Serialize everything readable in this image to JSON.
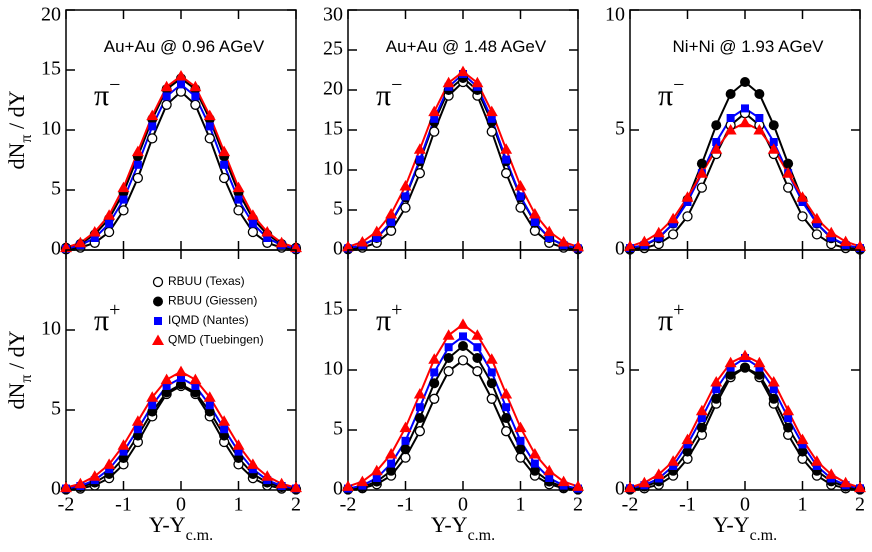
{
  "chart_data": [
    {
      "type": "line",
      "annotation": "Au+Au @ 0.96 AGeV",
      "particle": "π",
      "particle_sup": "−",
      "y_label": {
        "main": "dN",
        "sub": "π",
        "rest": " / dY"
      },
      "xlim": [
        -2,
        2
      ],
      "xticks": [
        -2,
        -1,
        0,
        1,
        2
      ],
      "ylim": [
        0,
        20
      ],
      "yticks": [
        0,
        5,
        10,
        15,
        20
      ],
      "x": [
        -2,
        -1.75,
        -1.5,
        -1.25,
        -1,
        -0.75,
        -0.5,
        -0.25,
        0,
        0.25,
        0.5,
        0.75,
        1,
        1.25,
        1.5,
        1.75,
        2
      ],
      "series": [
        {
          "color": "#000000",
          "marker": "circle-open",
          "values": [
            0.05,
            0.2,
            0.6,
            1.5,
            3.3,
            6.0,
            9.3,
            12.1,
            13.2,
            12.1,
            9.3,
            6.0,
            3.3,
            1.5,
            0.6,
            0.2,
            0.05
          ]
        },
        {
          "color": "#000000",
          "marker": "circle",
          "values": [
            0.2,
            0.5,
            1.3,
            2.6,
            4.8,
            7.8,
            10.9,
            13.4,
            14.3,
            13.4,
            10.9,
            7.8,
            4.8,
            2.6,
            1.3,
            0.5,
            0.2
          ]
        },
        {
          "color": "#0000ff",
          "marker": "square",
          "values": [
            0.1,
            0.4,
            1.0,
            2.2,
            4.2,
            7.1,
            10.3,
            12.8,
            13.8,
            12.8,
            10.3,
            7.1,
            4.2,
            2.2,
            1.0,
            0.4,
            0.1
          ]
        },
        {
          "color": "#ff0000",
          "marker": "triangle",
          "values": [
            0.2,
            0.6,
            1.5,
            2.9,
            5.2,
            8.2,
            11.2,
            13.6,
            14.5,
            13.6,
            11.2,
            8.2,
            5.2,
            2.9,
            1.5,
            0.6,
            0.2
          ]
        }
      ]
    },
    {
      "type": "line",
      "annotation": "Au+Au @ 1.48 AGeV",
      "particle": "π",
      "particle_sup": "−",
      "xlim": [
        -2,
        2
      ],
      "xticks": [
        -2,
        -1,
        0,
        1,
        2
      ],
      "ylim": [
        0,
        30
      ],
      "yticks": [
        0,
        5,
        10,
        15,
        20,
        25,
        30
      ],
      "x": [
        -2,
        -1.75,
        -1.5,
        -1.25,
        -1,
        -0.75,
        -0.5,
        -0.25,
        0,
        0.25,
        0.5,
        0.75,
        1,
        1.25,
        1.5,
        1.75,
        2
      ],
      "series": [
        {
          "color": "#000000",
          "marker": "circle-open",
          "values": [
            0.1,
            0.3,
            0.9,
            2.4,
            5.3,
            9.6,
            14.8,
            19.3,
            21,
            19.3,
            14.8,
            9.6,
            5.3,
            2.4,
            0.9,
            0.3,
            0.1
          ]
        },
        {
          "color": "#000000",
          "marker": "circle",
          "values": [
            0.2,
            0.6,
            1.5,
            3.4,
            6.6,
            11.1,
            16.0,
            20.0,
            21.5,
            20.0,
            16.0,
            11.1,
            6.6,
            3.4,
            1.5,
            0.6,
            0.2
          ]
        },
        {
          "color": "#0000ff",
          "marker": "square",
          "values": [
            0.2,
            0.6,
            1.5,
            3.5,
            6.7,
            11.3,
            16.4,
            20.4,
            22,
            20.4,
            16.4,
            11.3,
            6.7,
            3.5,
            1.5,
            0.6,
            0.2
          ]
        },
        {
          "color": "#ff0000",
          "marker": "triangle",
          "values": [
            0.4,
            1.0,
            2.3,
            4.5,
            8.0,
            12.6,
            17.3,
            20.9,
            22.3,
            20.9,
            17.3,
            12.6,
            8.0,
            4.5,
            2.3,
            1.0,
            0.4
          ]
        }
      ]
    },
    {
      "type": "line",
      "annotation": "Ni+Ni @ 1.93 AGeV",
      "particle": "π",
      "particle_sup": "−",
      "xlim": [
        -2,
        2
      ],
      "xticks": [
        -2,
        -1,
        0,
        1,
        2
      ],
      "ylim": [
        0,
        10
      ],
      "yticks": [
        0,
        5,
        10
      ],
      "x": [
        -2,
        -1.75,
        -1.5,
        -1.25,
        -1,
        -0.75,
        -0.5,
        -0.25,
        0,
        0.25,
        0.5,
        0.75,
        1,
        1.25,
        1.5,
        1.75,
        2
      ],
      "series": [
        {
          "color": "#000000",
          "marker": "circle-open",
          "values": [
            0.02,
            0.08,
            0.25,
            0.65,
            1.4,
            2.6,
            4.0,
            5.2,
            5.7,
            5.2,
            4.0,
            2.6,
            1.4,
            0.65,
            0.25,
            0.08,
            0.02
          ]
        },
        {
          "color": "#000000",
          "marker": "circle",
          "values": [
            0.06,
            0.19,
            0.49,
            1.1,
            2.1,
            3.6,
            5.2,
            6.5,
            7.0,
            6.5,
            5.2,
            3.6,
            2.1,
            1.1,
            0.49,
            0.19,
            0.06
          ]
        },
        {
          "color": "#0000ff",
          "marker": "square",
          "values": [
            0.08,
            0.21,
            0.52,
            1.1,
            2.0,
            3.2,
            4.5,
            5.5,
            5.9,
            5.5,
            4.5,
            3.2,
            2.0,
            1.1,
            0.52,
            0.21,
            0.08
          ]
        },
        {
          "color": "#ff0000",
          "marker": "triangle",
          "values": [
            0.15,
            0.35,
            0.72,
            1.3,
            2.2,
            3.2,
            4.2,
            5.0,
            5.3,
            5.0,
            4.2,
            3.2,
            2.2,
            1.3,
            0.72,
            0.35,
            0.15
          ]
        }
      ]
    },
    {
      "type": "line",
      "particle": "π",
      "particle_sup": "+",
      "y_label": {
        "main": "dN",
        "sub": "π",
        "rest": " / dY"
      },
      "x_label": {
        "main": "Y-Y",
        "sub": "c.m."
      },
      "legend": true,
      "xlim": [
        -2,
        2
      ],
      "xticks": [
        -2,
        -1,
        0,
        1,
        2
      ],
      "ylim": [
        0,
        15
      ],
      "yticks": [
        0,
        5,
        10
      ],
      "x": [
        -2,
        -1.75,
        -1.5,
        -1.25,
        -1,
        -0.75,
        -0.5,
        -0.25,
        0,
        0.25,
        0.5,
        0.75,
        1,
        1.25,
        1.5,
        1.75,
        2
      ],
      "series": [
        {
          "name": "RBUU (Texas)",
          "color": "#000000",
          "marker": "circle-open",
          "values": [
            0.03,
            0.09,
            0.29,
            0.74,
            1.6,
            3.0,
            4.6,
            6.0,
            6.5,
            6.0,
            4.6,
            3.0,
            1.6,
            0.74,
            0.29,
            0.09,
            0.03
          ]
        },
        {
          "name": "RBUU (Giessen)",
          "color": "#000000",
          "marker": "circle",
          "values": [
            0.06,
            0.18,
            0.46,
            1.0,
            2.0,
            3.4,
            4.9,
            6.1,
            6.6,
            6.1,
            4.9,
            3.4,
            2.0,
            1.0,
            0.46,
            0.18,
            0.06
          ]
        },
        {
          "name": "IQMD (Nantes)",
          "color": "#0000ff",
          "marker": "square",
          "values": [
            0.09,
            0.25,
            0.62,
            1.3,
            2.4,
            3.8,
            5.3,
            6.5,
            7.0,
            6.5,
            5.3,
            3.8,
            2.4,
            1.3,
            0.62,
            0.25,
            0.09
          ]
        },
        {
          "name": "QMD (Tuebingen)",
          "color": "#ff0000",
          "marker": "triangle",
          "values": [
            0.15,
            0.39,
            0.86,
            1.6,
            2.8,
            4.3,
            5.8,
            6.9,
            7.4,
            6.9,
            5.8,
            4.3,
            2.8,
            1.6,
            0.86,
            0.39,
            0.15
          ]
        }
      ]
    },
    {
      "type": "line",
      "particle": "π",
      "particle_sup": "+",
      "x_label": {
        "main": "Y-Y",
        "sub": "c.m."
      },
      "xlim": [
        -2,
        2
      ],
      "xticks": [
        -2,
        -1,
        0,
        1,
        2
      ],
      "ylim": [
        0,
        20
      ],
      "yticks": [
        0,
        5,
        10,
        15
      ],
      "x": [
        -2,
        -1.75,
        -1.5,
        -1.25,
        -1,
        -0.75,
        -0.5,
        -0.25,
        0,
        0.25,
        0.5,
        0.75,
        1,
        1.25,
        1.5,
        1.75,
        2
      ],
      "series": [
        {
          "color": "#000000",
          "marker": "circle-open",
          "values": [
            0.04,
            0.15,
            0.48,
            1.2,
            2.7,
            4.9,
            7.6,
            9.9,
            10.8,
            9.9,
            7.6,
            4.9,
            2.7,
            1.2,
            0.48,
            0.15,
            0.04
          ]
        },
        {
          "color": "#000000",
          "marker": "circle",
          "values": [
            0.07,
            0.24,
            0.7,
            1.6,
            3.4,
            6.0,
            8.9,
            11.0,
            12,
            11.0,
            8.9,
            6.0,
            3.4,
            1.6,
            0.7,
            0.24,
            0.07
          ]
        },
        {
          "color": "#0000ff",
          "marker": "square",
          "values": [
            0.12,
            0.37,
            1.0,
            2.2,
            4.1,
            6.9,
            9.8,
            11.9,
            12.8,
            11.9,
            9.8,
            6.9,
            4.1,
            2.2,
            1.0,
            0.37,
            0.12
          ]
        },
        {
          "color": "#ff0000",
          "marker": "triangle",
          "values": [
            0.3,
            0.7,
            1.6,
            3.0,
            5.2,
            8.0,
            10.9,
            12.9,
            13.8,
            12.9,
            10.9,
            8.0,
            5.2,
            3.0,
            1.6,
            0.7,
            0.3
          ]
        }
      ]
    },
    {
      "type": "line",
      "particle": "π",
      "particle_sup": "+",
      "x_label": {
        "main": "Y-Y",
        "sub": "c.m."
      },
      "xlim": [
        -2,
        2
      ],
      "xticks": [
        -2,
        -1,
        0,
        1,
        2
      ],
      "ylim": [
        0,
        10
      ],
      "yticks": [
        0,
        5
      ],
      "x": [
        -2,
        -1.75,
        -1.5,
        -1.25,
        -1,
        -0.75,
        -0.5,
        -0.25,
        0,
        0.25,
        0.5,
        0.75,
        1,
        1.25,
        1.5,
        1.75,
        2
      ],
      "series": [
        {
          "color": "#000000",
          "marker": "circle-open",
          "values": [
            0.02,
            0.07,
            0.22,
            0.6,
            1.3,
            2.3,
            3.6,
            4.7,
            5.1,
            4.7,
            3.6,
            2.3,
            1.3,
            0.6,
            0.22,
            0.07,
            0.02
          ]
        },
        {
          "color": "#000000",
          "marker": "circle",
          "values": [
            0.05,
            0.14,
            0.36,
            0.8,
            1.6,
            2.6,
            3.8,
            4.8,
            5.1,
            4.8,
            3.8,
            2.6,
            1.6,
            0.8,
            0.36,
            0.14,
            0.05
          ]
        },
        {
          "color": "#0000ff",
          "marker": "square",
          "values": [
            0.07,
            0.2,
            0.48,
            1.0,
            1.9,
            3.0,
            4.2,
            5.1,
            5.5,
            5.1,
            4.2,
            3.0,
            1.9,
            1.0,
            0.48,
            0.2,
            0.07
          ]
        },
        {
          "color": "#ff0000",
          "marker": "triangle",
          "values": [
            0.1,
            0.3,
            0.65,
            1.2,
            2.1,
            3.3,
            4.5,
            5.3,
            5.6,
            5.3,
            4.5,
            3.3,
            2.1,
            1.2,
            0.65,
            0.3,
            0.1
          ]
        }
      ]
    }
  ]
}
